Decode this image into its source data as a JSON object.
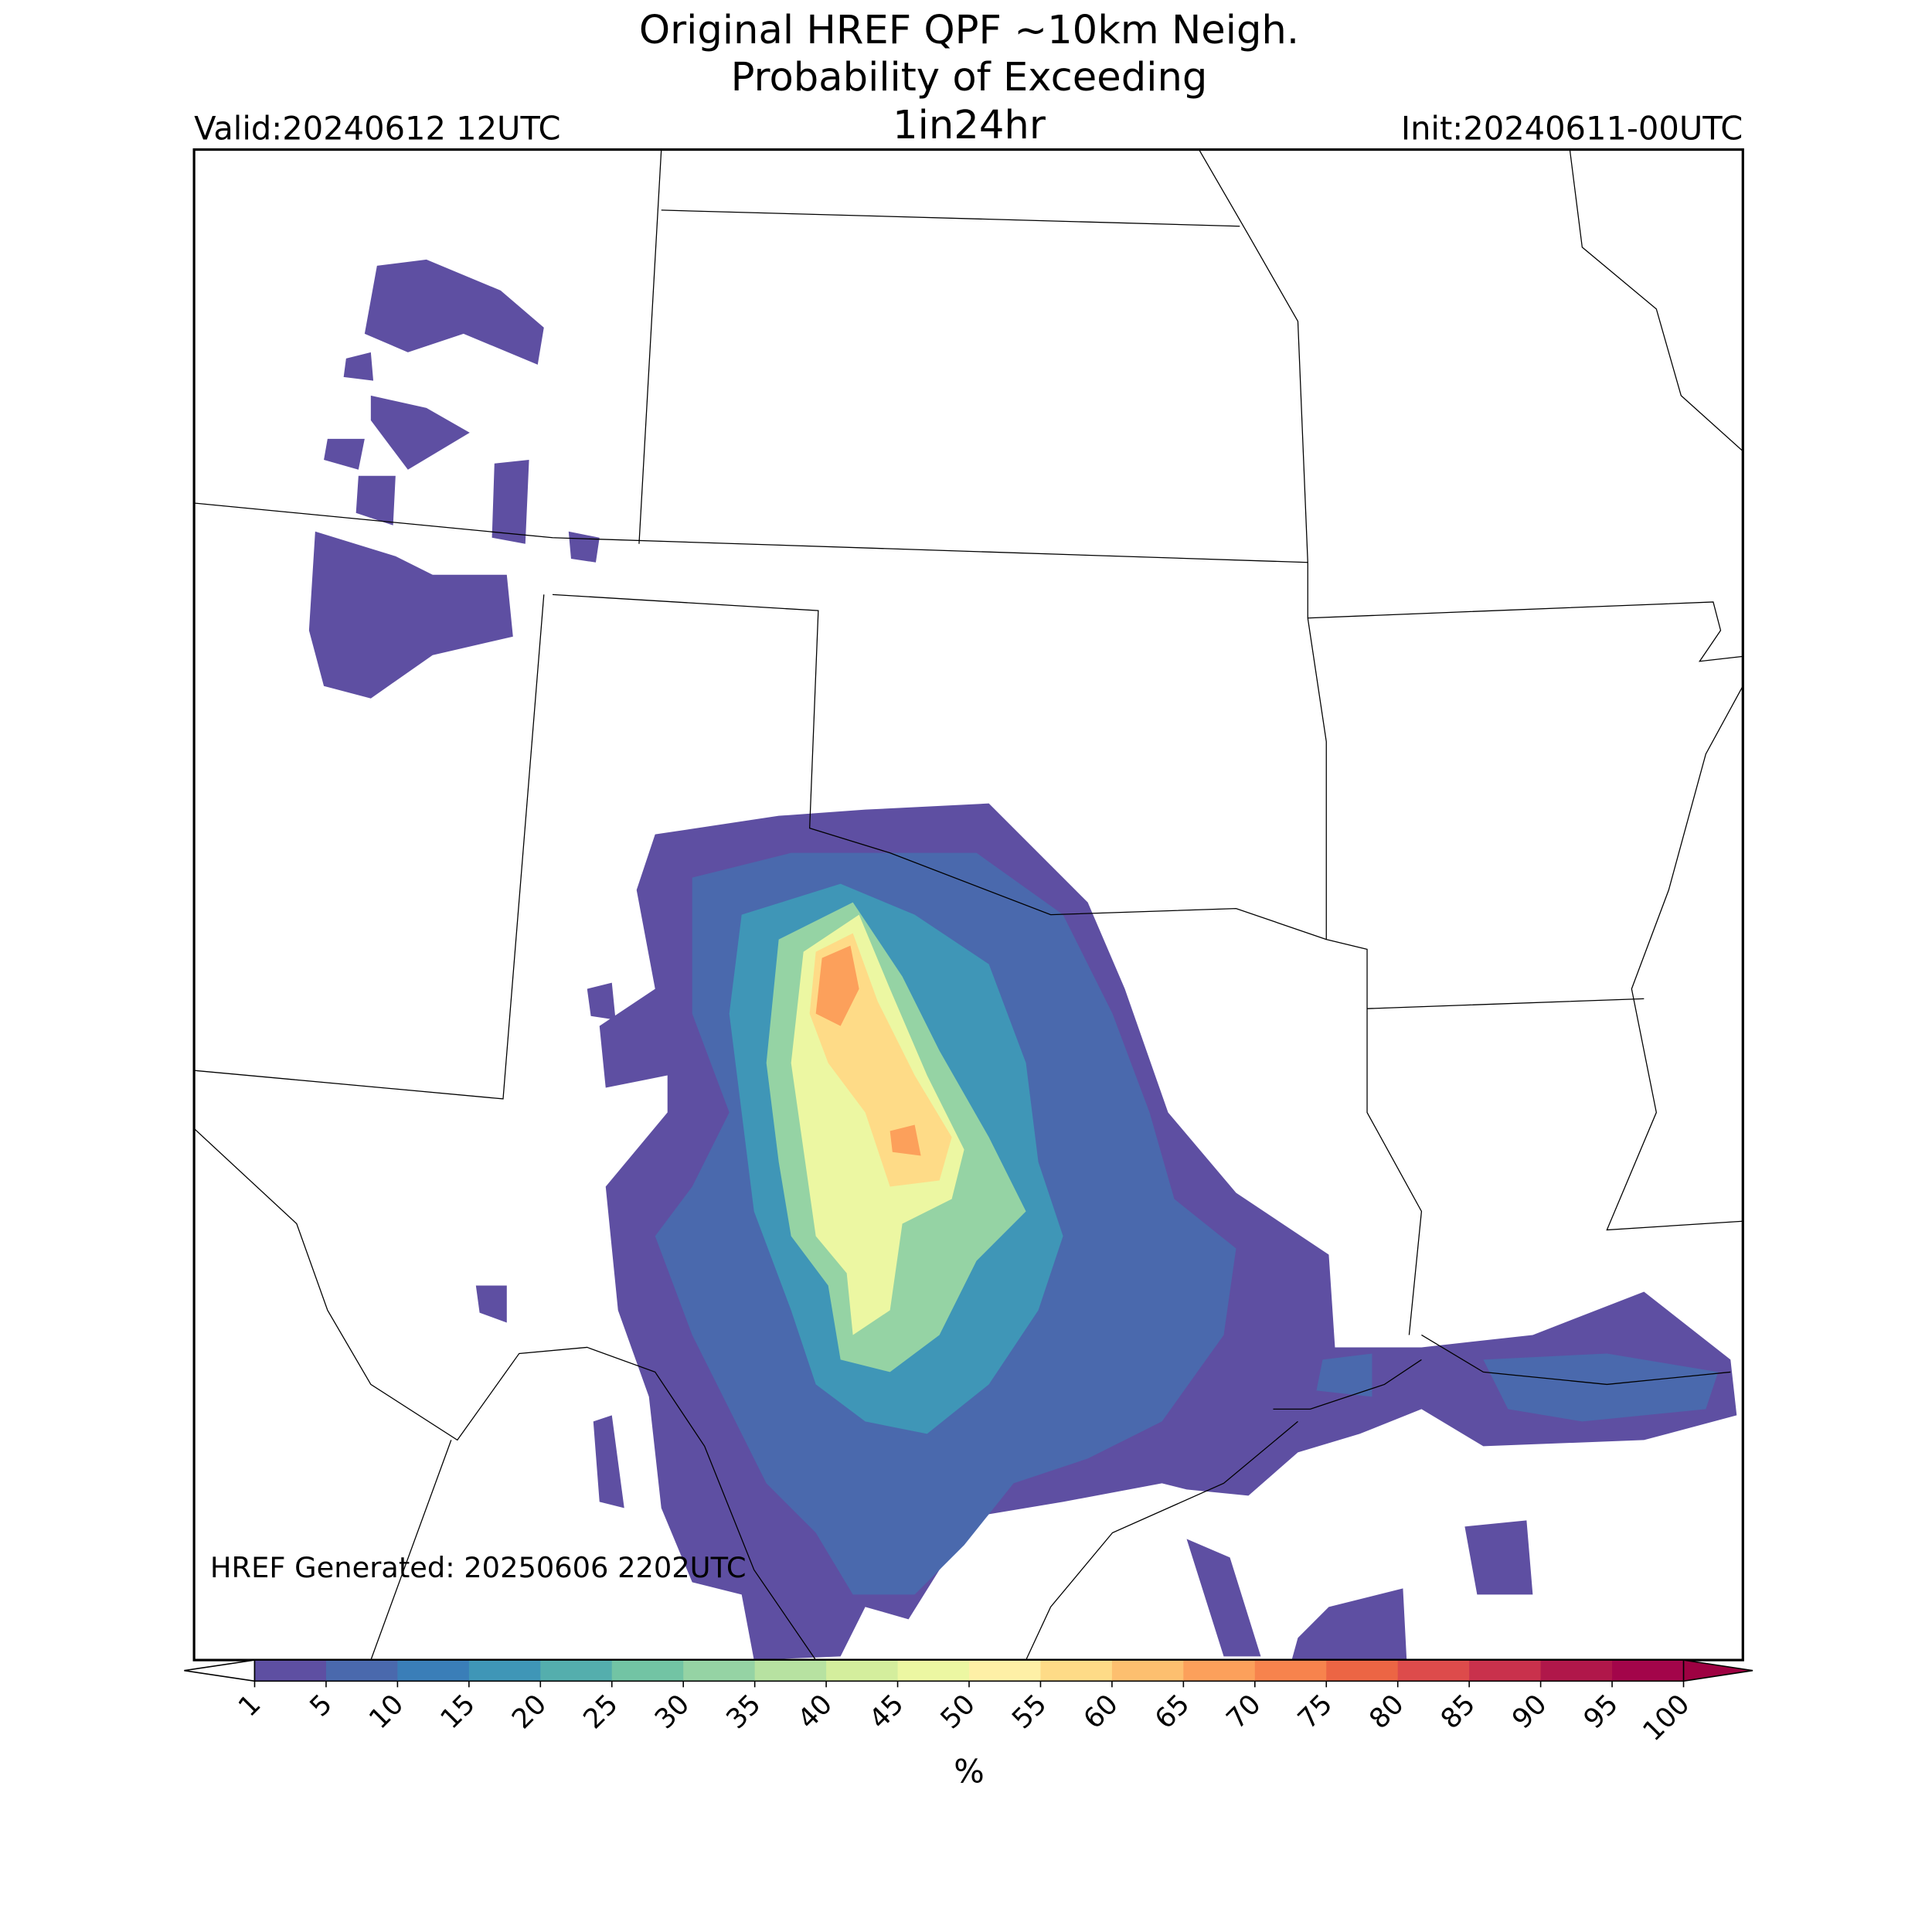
{
  "chart_data": {
    "type": "colormap",
    "title": [
      "Original HREF QPF ~10km Neigh.",
      "Probability of Exceeding",
      "1in24hr"
    ],
    "valid": "Valid:20240612 12UTC",
    "init": "Init:20240611-00UTC",
    "annotation": "HREF Generated: 20250606 2202UTC",
    "colorbar": {
      "label": "%",
      "ticks": [
        1,
        5,
        10,
        15,
        20,
        25,
        30,
        35,
        40,
        45,
        50,
        55,
        60,
        65,
        70,
        75,
        80,
        85,
        90,
        95,
        100
      ],
      "colors": [
        "#5e4fa2",
        "#4a69ad",
        "#3a7eb8",
        "#3f96b7",
        "#54aead",
        "#72c4a4",
        "#95d3a4",
        "#b7e2a1",
        "#d4ee9d",
        "#ecf7a2",
        "#fef0a6",
        "#fedb87",
        "#fdbf6f",
        "#fca05b",
        "#f7834d",
        "#ec6544",
        "#dd4b4b",
        "#c9314c",
        "#b0174a",
        "#a3054a"
      ],
      "under_color": "#ffffff",
      "over_color": "#9e0142"
    }
  }
}
